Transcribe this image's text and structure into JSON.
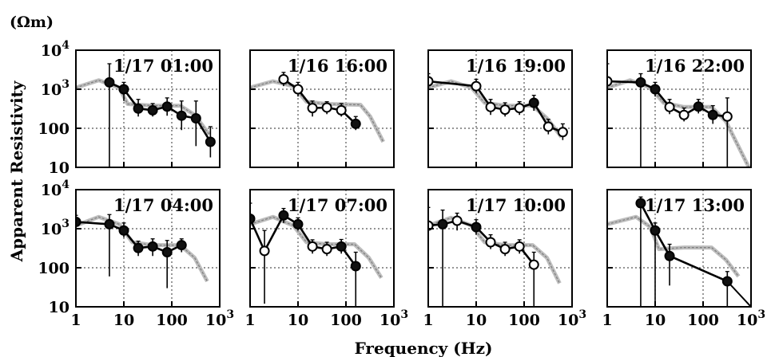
{
  "figure": {
    "unit_label": "(Ωm)",
    "y_axis_label": "Apparent Resistivity",
    "x_axis_label": "Frequency  (Hz)"
  },
  "chart_data": {
    "type": "line",
    "x_scale": "log",
    "y_scale": "log",
    "xlim": [
      1,
      1000
    ],
    "ylim": [
      10,
      10000
    ],
    "x_ticks": [
      "1",
      "10",
      "100",
      "10³"
    ],
    "y_ticks": [
      "10",
      "100",
      "10³",
      "10⁴"
    ],
    "grid": true,
    "panels": [
      {
        "title": "1/17 01:00",
        "observed": [
          {
            "x": 5,
            "y": 1500,
            "lo": 10,
            "hi": 4500,
            "filled": true
          },
          {
            "x": 10,
            "y": 1000,
            "lo": 500,
            "hi": 1500,
            "filled": true
          },
          {
            "x": 20,
            "y": 320,
            "lo": 200,
            "hi": 550,
            "filled": true
          },
          {
            "x": 40,
            "y": 290,
            "lo": 200,
            "hi": 430,
            "filled": true
          },
          {
            "x": 80,
            "y": 360,
            "lo": 210,
            "hi": 600,
            "filled": true
          },
          {
            "x": 160,
            "y": 210,
            "lo": 90,
            "hi": 500,
            "filled": true
          },
          {
            "x": 320,
            "y": 180,
            "lo": 35,
            "hi": 500,
            "filled": true
          },
          {
            "x": 640,
            "y": 45,
            "lo": 18,
            "hi": 110,
            "filled": true
          }
        ],
        "model": [
          {
            "x": 1,
            "y": 1100
          },
          {
            "x": 3,
            "y": 1700
          },
          {
            "x": 8,
            "y": 1100
          },
          {
            "x": 12,
            "y": 420
          },
          {
            "x": 40,
            "y": 380
          },
          {
            "x": 150,
            "y": 380
          },
          {
            "x": 300,
            "y": 220
          },
          {
            "x": 600,
            "y": 70
          }
        ]
      },
      {
        "title": "1/16 16:00",
        "observed": [
          {
            "x": 5,
            "y": 1800,
            "lo": 1200,
            "hi": 2700,
            "filled": false
          },
          {
            "x": 10,
            "y": 1000,
            "lo": 650,
            "hi": 1500,
            "filled": false
          },
          {
            "x": 20,
            "y": 330,
            "lo": 200,
            "hi": 500,
            "filled": false
          },
          {
            "x": 40,
            "y": 340,
            "lo": 230,
            "hi": 480,
            "filled": false
          },
          {
            "x": 80,
            "y": 290,
            "lo": 200,
            "hi": 430,
            "filled": false
          },
          {
            "x": 160,
            "y": 130,
            "lo": 90,
            "hi": 200,
            "filled": true
          }
        ],
        "model": [
          {
            "x": 1,
            "y": 1100
          },
          {
            "x": 3,
            "y": 1600
          },
          {
            "x": 8,
            "y": 1200
          },
          {
            "x": 15,
            "y": 480
          },
          {
            "x": 40,
            "y": 420
          },
          {
            "x": 200,
            "y": 400
          },
          {
            "x": 320,
            "y": 200
          },
          {
            "x": 600,
            "y": 45
          }
        ]
      },
      {
        "title": "1/16 19:00",
        "observed": [
          {
            "x": 1,
            "y": 1600,
            "lo": 200,
            "hi": 2500,
            "filled": false
          },
          {
            "x": 10,
            "y": 1200,
            "lo": 800,
            "hi": 1800,
            "filled": false
          },
          {
            "x": 20,
            "y": 350,
            "lo": 220,
            "hi": 550,
            "filled": false
          },
          {
            "x": 40,
            "y": 300,
            "lo": 200,
            "hi": 450,
            "filled": false
          },
          {
            "x": 80,
            "y": 330,
            "lo": 220,
            "hi": 480,
            "filled": false
          },
          {
            "x": 160,
            "y": 450,
            "lo": 280,
            "hi": 700,
            "filled": true
          },
          {
            "x": 320,
            "y": 110,
            "lo": 70,
            "hi": 170,
            "filled": false
          },
          {
            "x": 640,
            "y": 80,
            "lo": 50,
            "hi": 130,
            "filled": false
          }
        ],
        "model": [
          {
            "x": 1,
            "y": 1100
          },
          {
            "x": 3,
            "y": 1600
          },
          {
            "x": 8,
            "y": 1100
          },
          {
            "x": 15,
            "y": 450
          },
          {
            "x": 40,
            "y": 380
          },
          {
            "x": 150,
            "y": 380
          },
          {
            "x": 300,
            "y": 180
          },
          {
            "x": 600,
            "y": 60
          }
        ]
      },
      {
        "title": "1/16 22:00",
        "observed": [
          {
            "x": 1,
            "y": 1600,
            "lo": 100,
            "hi": 4500,
            "filled": false
          },
          {
            "x": 5,
            "y": 1500,
            "lo": 10,
            "hi": 2500,
            "filled": true
          },
          {
            "x": 10,
            "y": 1000,
            "lo": 650,
            "hi": 1500,
            "filled": true
          },
          {
            "x": 20,
            "y": 350,
            "lo": 230,
            "hi": 550,
            "filled": false
          },
          {
            "x": 40,
            "y": 220,
            "lo": 150,
            "hi": 330,
            "filled": false
          },
          {
            "x": 80,
            "y": 360,
            "lo": 240,
            "hi": 550,
            "filled": true
          },
          {
            "x": 160,
            "y": 220,
            "lo": 130,
            "hi": 380,
            "filled": true
          },
          {
            "x": 320,
            "y": 200,
            "lo": 10,
            "hi": 600,
            "filled": false
          }
        ],
        "model": [
          {
            "x": 1,
            "y": 1100
          },
          {
            "x": 3,
            "y": 1700
          },
          {
            "x": 8,
            "y": 1100
          },
          {
            "x": 15,
            "y": 450
          },
          {
            "x": 40,
            "y": 350
          },
          {
            "x": 150,
            "y": 350
          },
          {
            "x": 300,
            "y": 150
          },
          {
            "x": 900,
            "y": 10
          }
        ]
      },
      {
        "title": "1/17 04:00",
        "observed": [
          {
            "x": 1,
            "y": 1500,
            "lo": 900,
            "hi": 2200,
            "filled": true
          },
          {
            "x": 5,
            "y": 1300,
            "lo": 60,
            "hi": 2300,
            "filled": true
          },
          {
            "x": 10,
            "y": 900,
            "lo": 600,
            "hi": 1400,
            "filled": true
          },
          {
            "x": 20,
            "y": 320,
            "lo": 200,
            "hi": 480,
            "filled": true
          },
          {
            "x": 40,
            "y": 350,
            "lo": 200,
            "hi": 550,
            "filled": true
          },
          {
            "x": 80,
            "y": 250,
            "lo": 30,
            "hi": 500,
            "filled": true
          },
          {
            "x": 160,
            "y": 380,
            "lo": 250,
            "hi": 550,
            "filled": true
          }
        ],
        "model": [
          {
            "x": 1,
            "y": 1200
          },
          {
            "x": 3,
            "y": 2000
          },
          {
            "x": 8,
            "y": 1300
          },
          {
            "x": 15,
            "y": 450
          },
          {
            "x": 40,
            "y": 380
          },
          {
            "x": 150,
            "y": 380
          },
          {
            "x": 300,
            "y": 180
          },
          {
            "x": 550,
            "y": 45
          }
        ]
      },
      {
        "title": "1/17 07:00",
        "observed": [
          {
            "x": 1,
            "y": 1800,
            "lo": 400,
            "hi": 4500,
            "filled": true
          },
          {
            "x": 2,
            "y": 270,
            "lo": 12,
            "hi": 900,
            "filled": false
          },
          {
            "x": 5,
            "y": 2200,
            "lo": 1400,
            "hi": 3300,
            "filled": true
          },
          {
            "x": 10,
            "y": 1300,
            "lo": 900,
            "hi": 1900,
            "filled": true
          },
          {
            "x": 20,
            "y": 350,
            "lo": 230,
            "hi": 520,
            "filled": false
          },
          {
            "x": 40,
            "y": 300,
            "lo": 200,
            "hi": 450,
            "filled": false
          },
          {
            "x": 80,
            "y": 350,
            "lo": 230,
            "hi": 530,
            "filled": true
          },
          {
            "x": 160,
            "y": 110,
            "lo": 10,
            "hi": 250,
            "filled": true
          }
        ],
        "model": [
          {
            "x": 1,
            "y": 1300
          },
          {
            "x": 3,
            "y": 2000
          },
          {
            "x": 8,
            "y": 1200
          },
          {
            "x": 15,
            "y": 450
          },
          {
            "x": 40,
            "y": 400
          },
          {
            "x": 150,
            "y": 400
          },
          {
            "x": 300,
            "y": 180
          },
          {
            "x": 550,
            "y": 55
          }
        ]
      },
      {
        "title": "1/17 10:00",
        "observed": [
          {
            "x": 1,
            "y": 1200,
            "lo": 10,
            "hi": 3500,
            "filled": false
          },
          {
            "x": 2,
            "y": 1300,
            "lo": 10,
            "hi": 3000,
            "filled": true
          },
          {
            "x": 4,
            "y": 1600,
            "lo": 900,
            "hi": 2500,
            "filled": false
          },
          {
            "x": 10,
            "y": 1100,
            "lo": 700,
            "hi": 1700,
            "filled": true
          },
          {
            "x": 20,
            "y": 450,
            "lo": 300,
            "hi": 700,
            "filled": false
          },
          {
            "x": 40,
            "y": 300,
            "lo": 200,
            "hi": 450,
            "filled": false
          },
          {
            "x": 80,
            "y": 350,
            "lo": 230,
            "hi": 520,
            "filled": false
          },
          {
            "x": 160,
            "y": 120,
            "lo": 10,
            "hi": 250,
            "filled": false
          }
        ],
        "model": [
          {
            "x": 1,
            "y": 1200
          },
          {
            "x": 3,
            "y": 1900
          },
          {
            "x": 8,
            "y": 1200
          },
          {
            "x": 15,
            "y": 450
          },
          {
            "x": 40,
            "y": 380
          },
          {
            "x": 150,
            "y": 380
          },
          {
            "x": 300,
            "y": 180
          },
          {
            "x": 550,
            "y": 40
          }
        ]
      },
      {
        "title": "1/17 13:00",
        "observed": [
          {
            "x": 5,
            "y": 4500,
            "lo": 10,
            "hi": 6500,
            "filled": true
          },
          {
            "x": 10,
            "y": 900,
            "lo": 10,
            "hi": 1400,
            "filled": true
          },
          {
            "x": 20,
            "y": 200,
            "lo": 35,
            "hi": 400,
            "filled": true
          },
          {
            "x": 320,
            "y": 45,
            "lo": 10,
            "hi": 80,
            "filled": true
          }
        ],
        "fit": [
          {
            "x": 5,
            "y": 4500
          },
          {
            "x": 10,
            "y": 900
          },
          {
            "x": 20,
            "y": 200
          },
          {
            "x": 320,
            "y": 45
          },
          {
            "x": 1000,
            "y": 10
          }
        ],
        "model": [
          {
            "x": 1,
            "y": 1300
          },
          {
            "x": 4,
            "y": 2000
          },
          {
            "x": 8,
            "y": 1100
          },
          {
            "x": 12,
            "y": 300
          },
          {
            "x": 40,
            "y": 330
          },
          {
            "x": 150,
            "y": 330
          },
          {
            "x": 300,
            "y": 160
          },
          {
            "x": 550,
            "y": 60
          }
        ]
      }
    ]
  }
}
